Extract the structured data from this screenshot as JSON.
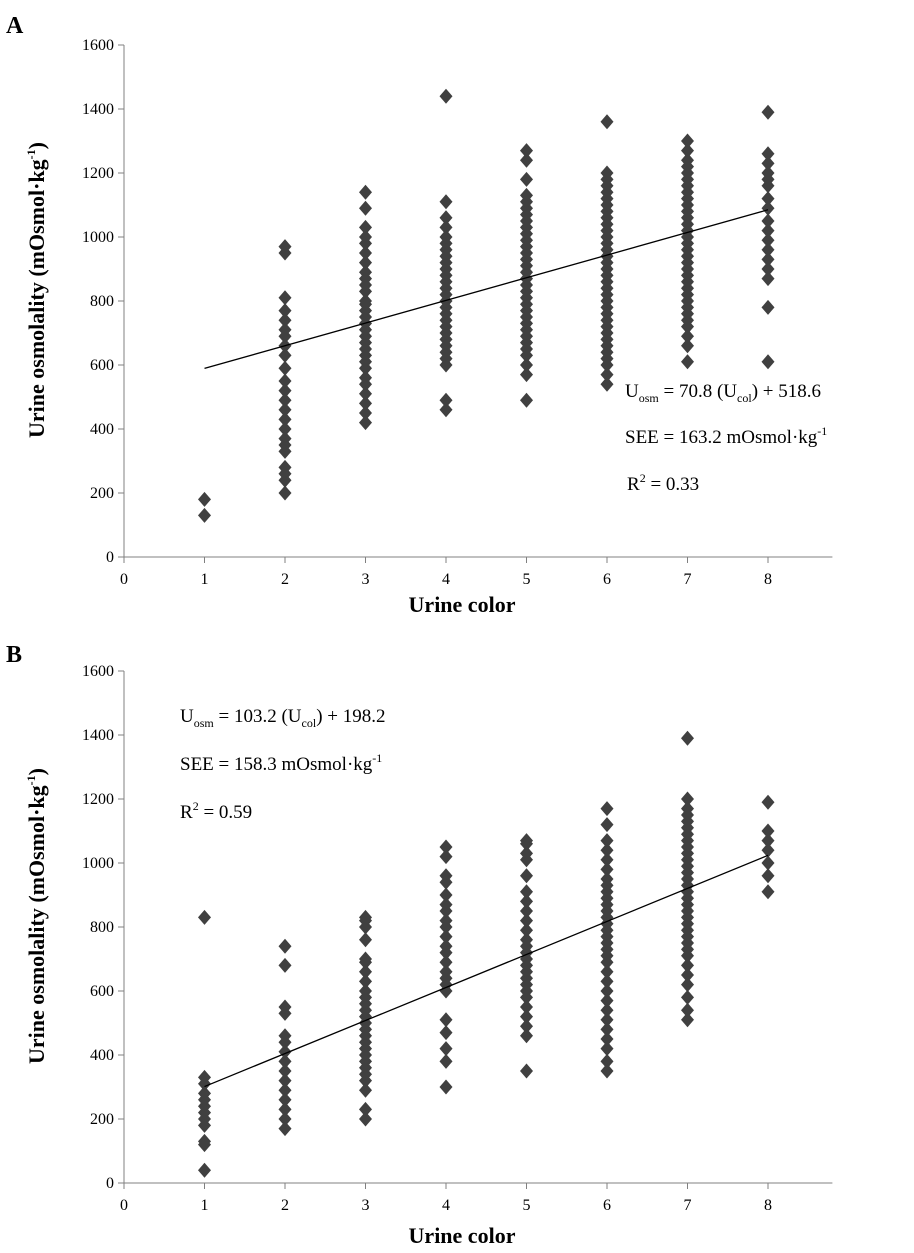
{
  "colors": {
    "marker": "#404040",
    "axis": "#808080",
    "fit_line": "#000000"
  },
  "chart_data": [
    {
      "panel": "A",
      "type": "scatter",
      "marker": "diamond-icon",
      "xlabel": "Urine color",
      "ylabel": "Urine osmolality (mOsmol·kg-1)",
      "ylabel_parts": {
        "pre": "Urine osmolality (mOsmol·kg",
        "sup": "-1",
        "post": ")"
      },
      "xlim": [
        0,
        8.8
      ],
      "ylim": [
        0,
        1600
      ],
      "x_ticks": [
        0,
        1,
        2,
        3,
        4,
        5,
        6,
        7,
        8
      ],
      "y_ticks": [
        0,
        200,
        400,
        600,
        800,
        1000,
        1200,
        1400,
        1600
      ],
      "grid": false,
      "points": {
        "1": [
          130,
          180
        ],
        "2": [
          200,
          240,
          260,
          280,
          330,
          350,
          370,
          400,
          430,
          460,
          490,
          520,
          550,
          590,
          630,
          660,
          690,
          710,
          740,
          770,
          810,
          950,
          970
        ],
        "3": [
          420,
          450,
          480,
          510,
          540,
          560,
          590,
          610,
          630,
          650,
          670,
          690,
          710,
          730,
          750,
          770,
          790,
          800,
          830,
          850,
          870,
          890,
          920,
          950,
          980,
          1000,
          1030,
          1090,
          1140
        ],
        "4": [
          460,
          490,
          600,
          620,
          640,
          660,
          680,
          700,
          720,
          740,
          760,
          780,
          800,
          820,
          840,
          860,
          880,
          900,
          920,
          940,
          960,
          980,
          1000,
          1030,
          1060,
          1110,
          1440
        ],
        "5": [
          490,
          570,
          600,
          630,
          650,
          670,
          690,
          710,
          730,
          750,
          770,
          790,
          810,
          830,
          850,
          870,
          890,
          910,
          930,
          950,
          970,
          990,
          1010,
          1030,
          1050,
          1070,
          1090,
          1110,
          1130,
          1180,
          1240,
          1270
        ],
        "6": [
          540,
          570,
          600,
          620,
          640,
          660,
          680,
          700,
          720,
          740,
          760,
          780,
          800,
          820,
          840,
          860,
          880,
          900,
          920,
          940,
          960,
          980,
          1000,
          1020,
          1040,
          1060,
          1080,
          1100,
          1120,
          1140,
          1160,
          1180,
          1200,
          1360
        ],
        "7": [
          610,
          660,
          690,
          720,
          740,
          760,
          780,
          800,
          820,
          840,
          860,
          880,
          900,
          920,
          940,
          960,
          980,
          1000,
          1020,
          1040,
          1060,
          1080,
          1100,
          1120,
          1140,
          1160,
          1180,
          1200,
          1220,
          1240,
          1270,
          1300
        ],
        "8": [
          610,
          780,
          870,
          900,
          930,
          960,
          990,
          1020,
          1050,
          1090,
          1120,
          1160,
          1180,
          1200,
          1230,
          1260,
          1390
        ]
      },
      "fit": {
        "slope": 70.8,
        "intercept": 518.6,
        "x_range": [
          1,
          8
        ]
      },
      "annotations": {
        "equation": {
          "lhs": "U",
          "lhs_sub": "osm",
          "mid": " = 70.8 (U",
          "mid_sub": "col",
          "rhs": ") + 518.6"
        },
        "see": {
          "text": "SEE = 163.2 mOsmol·kg",
          "sup": "-1"
        },
        "r2": {
          "pre": "R",
          "sup": "2",
          "post": " = 0.33"
        }
      }
    },
    {
      "panel": "B",
      "type": "scatter",
      "marker": "diamond-icon",
      "xlabel": "Urine color",
      "ylabel": "Urine osmolality (mOsmol·kg-1)",
      "ylabel_parts": {
        "pre": "Urine osmolality (mOsmol·kg",
        "sup": "-1",
        "post": ")"
      },
      "xlim": [
        0,
        8.8
      ],
      "ylim": [
        0,
        1600
      ],
      "x_ticks": [
        0,
        1,
        2,
        3,
        4,
        5,
        6,
        7,
        8
      ],
      "y_ticks": [
        0,
        200,
        400,
        600,
        800,
        1000,
        1200,
        1400,
        1600
      ],
      "grid": false,
      "points": {
        "1": [
          40,
          120,
          130,
          180,
          200,
          220,
          240,
          260,
          280,
          310,
          330,
          830
        ],
        "2": [
          170,
          200,
          230,
          260,
          290,
          320,
          350,
          380,
          410,
          440,
          460,
          530,
          550,
          680,
          740
        ],
        "3": [
          200,
          230,
          290,
          320,
          340,
          360,
          380,
          400,
          420,
          440,
          460,
          480,
          500,
          520,
          540,
          560,
          580,
          600,
          630,
          660,
          690,
          700,
          760,
          800,
          820,
          830
        ],
        "4": [
          300,
          380,
          420,
          470,
          510,
          600,
          620,
          640,
          660,
          690,
          720,
          740,
          770,
          800,
          820,
          850,
          870,
          900,
          940,
          960,
          1020,
          1050
        ],
        "5": [
          350,
          460,
          490,
          520,
          550,
          580,
          600,
          620,
          640,
          660,
          680,
          700,
          720,
          740,
          760,
          790,
          820,
          850,
          880,
          910,
          960,
          1010,
          1030,
          1060,
          1070
        ],
        "6": [
          350,
          380,
          420,
          450,
          480,
          510,
          540,
          570,
          600,
          630,
          660,
          690,
          710,
          730,
          750,
          770,
          790,
          810,
          830,
          850,
          870,
          890,
          910,
          930,
          950,
          980,
          1010,
          1040,
          1070,
          1120,
          1170
        ],
        "7": [
          510,
          540,
          580,
          620,
          650,
          680,
          710,
          730,
          750,
          770,
          790,
          810,
          830,
          850,
          870,
          890,
          910,
          930,
          950,
          970,
          990,
          1010,
          1030,
          1050,
          1070,
          1090,
          1110,
          1130,
          1150,
          1170,
          1200,
          1390
        ],
        "8": [
          910,
          960,
          1000,
          1040,
          1070,
          1100,
          1190
        ]
      },
      "fit": {
        "slope": 103.2,
        "intercept": 198.2,
        "x_range": [
          1,
          8
        ]
      },
      "annotations": {
        "equation": {
          "lhs": "U",
          "lhs_sub": "osm",
          "mid": " = 103.2 (U",
          "mid_sub": "col",
          "rhs": ") + 198.2"
        },
        "see": {
          "text": "SEE = 158.3 mOsmol·kg",
          "sup": "-1"
        },
        "r2": {
          "pre": "R",
          "sup": "2",
          "post": " = 0.59"
        }
      }
    }
  ]
}
